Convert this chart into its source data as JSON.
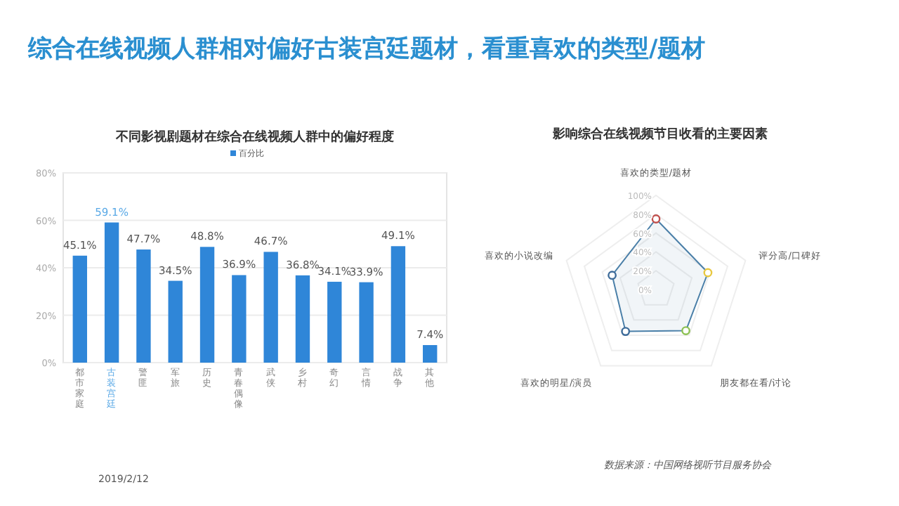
{
  "chart_data": [
    {
      "type": "other",
      "title": "综合在线视频人群相对偏好古装宫廷题材，看重喜欢的类型/题材",
      "annotations": [
        "2019/2/12",
        "数据来源：中国网络视听节目服务协会"
      ]
    },
    {
      "type": "bar",
      "title": "不同影视剧题材在综合在线视频人群中的偏好程度",
      "categories": [
        "都市家庭",
        "古装宫廷",
        "警匪",
        "军旅",
        "历史",
        "青春偶像",
        "武侠",
        "乡村",
        "奇幻",
        "言情",
        "战争",
        "其他"
      ],
      "series": [
        {
          "name": "百分比",
          "color": "#2f86d8",
          "values": [
            45.1,
            59.1,
            47.7,
            34.5,
            48.8,
            36.9,
            46.7,
            36.8,
            34.1,
            33.9,
            49.1,
            7.4
          ],
          "value_labels": [
            "45.1%",
            "59.1%",
            "47.7%",
            "34.5%",
            "48.8%",
            "36.9%",
            "46.7%",
            "36.8%",
            "34.1%",
            "33.9%",
            "49.1%",
            "7.4%"
          ]
        }
      ],
      "ylim": [
        0,
        80
      ],
      "yticks": [
        {
          "value": 0,
          "label": "0%"
        },
        {
          "value": 20,
          "label": "20%"
        },
        {
          "value": 40,
          "label": "40%"
        },
        {
          "value": 60,
          "label": "60%"
        },
        {
          "value": 80,
          "label": "80%"
        }
      ],
      "grid": "y",
      "legend": "top"
    },
    {
      "type": "radar",
      "title": "影响综合在线视频节目收看的主要因素",
      "categories": [
        "喜欢的类型/题材",
        "评分高/口碑好",
        "朋友都在看/讨论",
        "喜欢的明星/演员",
        "喜欢的小说改编"
      ],
      "series": [
        {
          "color": "#4a7fa8",
          "values": [
            75,
            58,
            54,
            55,
            49
          ],
          "colors": [
            "#c0504d",
            "#e8c840",
            "#8cc152",
            "#3d6b99",
            "#3d6b99"
          ]
        }
      ],
      "ylim": [
        0,
        100
      ],
      "yticks": [
        {
          "value": 0,
          "label": "0%"
        },
        {
          "value": 20,
          "label": "20%"
        },
        {
          "value": 40,
          "label": "40%"
        },
        {
          "value": 60,
          "label": "60%"
        },
        {
          "value": 80,
          "label": "80%"
        },
        {
          "value": 100,
          "label": "100%"
        }
      ],
      "marker": "circle"
    }
  ]
}
